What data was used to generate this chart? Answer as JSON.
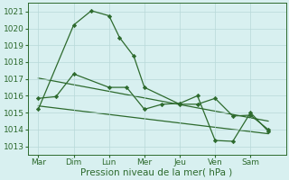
{
  "background_color": "#d8f0f0",
  "plot_bg_color": "#d8f0f0",
  "grid_color": "#b8d8d8",
  "line_color": "#2d6a2d",
  "xlabel": "Pression niveau de la mer( hPa )",
  "xlabels": [
    "Mar",
    "Dim",
    "Lun",
    "Mer",
    "Jeu",
    "Ven",
    "Sam"
  ],
  "ylim": [
    1012.5,
    1021.5
  ],
  "yticks": [
    1013,
    1014,
    1015,
    1016,
    1017,
    1018,
    1019,
    1020,
    1021
  ],
  "series1_x": [
    0.0,
    1.0,
    1.5,
    2.0,
    2.3,
    2.7,
    3.0,
    4.0,
    4.5,
    5.0,
    5.5,
    6.0,
    6.5
  ],
  "series1_y": [
    1015.2,
    1020.2,
    1021.05,
    1020.75,
    1019.45,
    1018.35,
    1016.5,
    1015.5,
    1015.5,
    1015.85,
    1014.8,
    1014.85,
    1014.0
  ],
  "series2_x": [
    0.0,
    0.5,
    1.0,
    2.0,
    2.5,
    3.0,
    3.5,
    4.0,
    4.5,
    5.0,
    5.5,
    6.0,
    6.5
  ],
  "series2_y": [
    1015.85,
    1015.95,
    1017.3,
    1016.5,
    1016.5,
    1015.2,
    1015.5,
    1015.55,
    1016.0,
    1013.35,
    1013.3,
    1015.0,
    1013.9
  ],
  "trend1_x": [
    0.0,
    6.5
  ],
  "trend1_y": [
    1017.05,
    1014.5
  ],
  "trend2_x": [
    0.0,
    6.5
  ],
  "trend2_y": [
    1015.4,
    1013.75
  ],
  "xlim": [
    -0.3,
    7.0
  ],
  "xtick_positions": [
    0,
    1,
    2,
    3,
    4,
    5,
    6
  ],
  "marker": "D",
  "marker_size": 2.2,
  "line_width": 0.9,
  "tick_fontsize": 6.5,
  "xlabel_fontsize": 7.5
}
